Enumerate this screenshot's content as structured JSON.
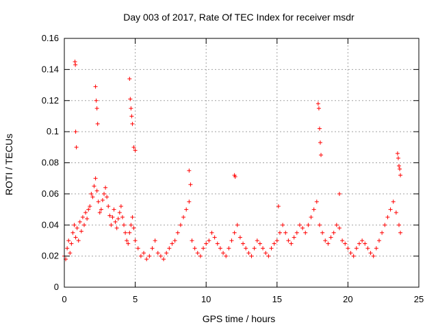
{
  "chart_data": {
    "type": "scatter",
    "title": "Day 003 of 2017, Rate Of TEC Index for receiver msdr",
    "xlabel": "GPS time / hours",
    "ylabel": "ROTI / TECUs",
    "xlim": [
      0,
      25
    ],
    "ylim": [
      0,
      0.16
    ],
    "xticks": [
      0,
      5,
      10,
      15,
      20,
      25
    ],
    "yticks": [
      0,
      0.02,
      0.04,
      0.06,
      0.08,
      0.1,
      0.12,
      0.14,
      0.16
    ],
    "xtick_labels": [
      "0",
      "5",
      "10",
      "15",
      "20",
      "25"
    ],
    "ytick_labels": [
      "0",
      "0.02",
      "0.04",
      "0.06",
      "0.08",
      "0.1",
      "0.12",
      "0.14",
      "0.16"
    ],
    "grid": true,
    "marker": "+",
    "color": "#ff0000",
    "series": [
      {
        "x": [
          0.0,
          0.1,
          0.2,
          0.3,
          0.4,
          0.5,
          0.6,
          0.7,
          0.8,
          0.9,
          1.0,
          1.1,
          1.2,
          1.3,
          1.4,
          1.5,
          1.6,
          1.7,
          1.8,
          1.9,
          2.0,
          2.1,
          2.2,
          2.3,
          2.4,
          2.5,
          2.6,
          2.7,
          2.8,
          2.9,
          3.0,
          3.1,
          3.2,
          3.3,
          3.4,
          3.5,
          3.6,
          3.7,
          3.8,
          3.9,
          4.0,
          4.1,
          4.2,
          4.3,
          4.4,
          4.5,
          4.6,
          4.7,
          4.8,
          4.9,
          5.0,
          5.2,
          5.4,
          5.6,
          5.8,
          6.0,
          6.2,
          6.4,
          6.6,
          6.8,
          7.0,
          7.2,
          7.4,
          7.6,
          7.8,
          8.0,
          8.2,
          8.4,
          8.6,
          8.8,
          9.0,
          9.2,
          9.4,
          9.6,
          9.8,
          10.0,
          10.2,
          10.4,
          10.6,
          10.8,
          11.0,
          11.2,
          11.4,
          11.6,
          11.8,
          12.0,
          12.2,
          12.4,
          12.6,
          12.8,
          13.0,
          13.2,
          13.4,
          13.6,
          13.8,
          14.0,
          14.2,
          14.4,
          14.6,
          14.8,
          15.0,
          15.2,
          15.4,
          15.6,
          15.8,
          16.0,
          16.2,
          16.4,
          16.6,
          16.8,
          17.0,
          17.2,
          17.4,
          17.6,
          17.8,
          18.0,
          18.2,
          18.4,
          18.6,
          18.8,
          19.0,
          19.2,
          19.4,
          19.6,
          19.8,
          20.0,
          20.2,
          20.4,
          20.6,
          20.8,
          21.0,
          21.2,
          21.4,
          21.6,
          21.8,
          22.0,
          22.2,
          22.4,
          22.6,
          22.8,
          23.0,
          23.2,
          23.4,
          23.6,
          23.7,
          0.75,
          0.78,
          0.8,
          0.85,
          2.2,
          2.25,
          2.3,
          2.35,
          4.6,
          4.65,
          4.7,
          4.75,
          4.8,
          4.9,
          5.0,
          8.8,
          8.9,
          12.0,
          12.05,
          15.1,
          17.9,
          17.95,
          18.0,
          18.05,
          18.1,
          19.4,
          23.5,
          23.55,
          23.6,
          23.65,
          23.7
        ],
        "y": [
          0.02,
          0.018,
          0.025,
          0.03,
          0.022,
          0.028,
          0.035,
          0.04,
          0.032,
          0.038,
          0.03,
          0.042,
          0.036,
          0.045,
          0.04,
          0.048,
          0.044,
          0.05,
          0.052,
          0.06,
          0.058,
          0.065,
          0.07,
          0.062,
          0.055,
          0.048,
          0.05,
          0.056,
          0.06,
          0.064,
          0.058,
          0.052,
          0.046,
          0.04,
          0.045,
          0.05,
          0.042,
          0.038,
          0.044,
          0.048,
          0.052,
          0.045,
          0.04,
          0.035,
          0.03,
          0.028,
          0.035,
          0.04,
          0.045,
          0.038,
          0.03,
          0.025,
          0.02,
          0.022,
          0.018,
          0.02,
          0.025,
          0.03,
          0.022,
          0.02,
          0.018,
          0.022,
          0.025,
          0.028,
          0.03,
          0.035,
          0.04,
          0.045,
          0.05,
          0.055,
          0.03,
          0.025,
          0.022,
          0.02,
          0.025,
          0.028,
          0.03,
          0.035,
          0.032,
          0.028,
          0.025,
          0.022,
          0.02,
          0.025,
          0.03,
          0.035,
          0.04,
          0.032,
          0.028,
          0.025,
          0.022,
          0.02,
          0.025,
          0.03,
          0.028,
          0.025,
          0.022,
          0.02,
          0.025,
          0.028,
          0.03,
          0.035,
          0.04,
          0.035,
          0.03,
          0.028,
          0.032,
          0.035,
          0.04,
          0.038,
          0.035,
          0.04,
          0.045,
          0.05,
          0.055,
          0.04,
          0.035,
          0.03,
          0.028,
          0.032,
          0.035,
          0.04,
          0.038,
          0.03,
          0.028,
          0.025,
          0.022,
          0.02,
          0.025,
          0.028,
          0.03,
          0.028,
          0.025,
          0.022,
          0.02,
          0.025,
          0.03,
          0.035,
          0.04,
          0.045,
          0.05,
          0.055,
          0.048,
          0.04,
          0.035,
          0.145,
          0.143,
          0.1,
          0.09,
          0.129,
          0.12,
          0.115,
          0.105,
          0.134,
          0.121,
          0.115,
          0.11,
          0.105,
          0.09,
          0.088,
          0.075,
          0.066,
          0.072,
          0.071,
          0.052,
          0.118,
          0.115,
          0.102,
          0.093,
          0.085,
          0.06,
          0.086,
          0.083,
          0.078,
          0.076,
          0.072
        ]
      }
    ]
  }
}
